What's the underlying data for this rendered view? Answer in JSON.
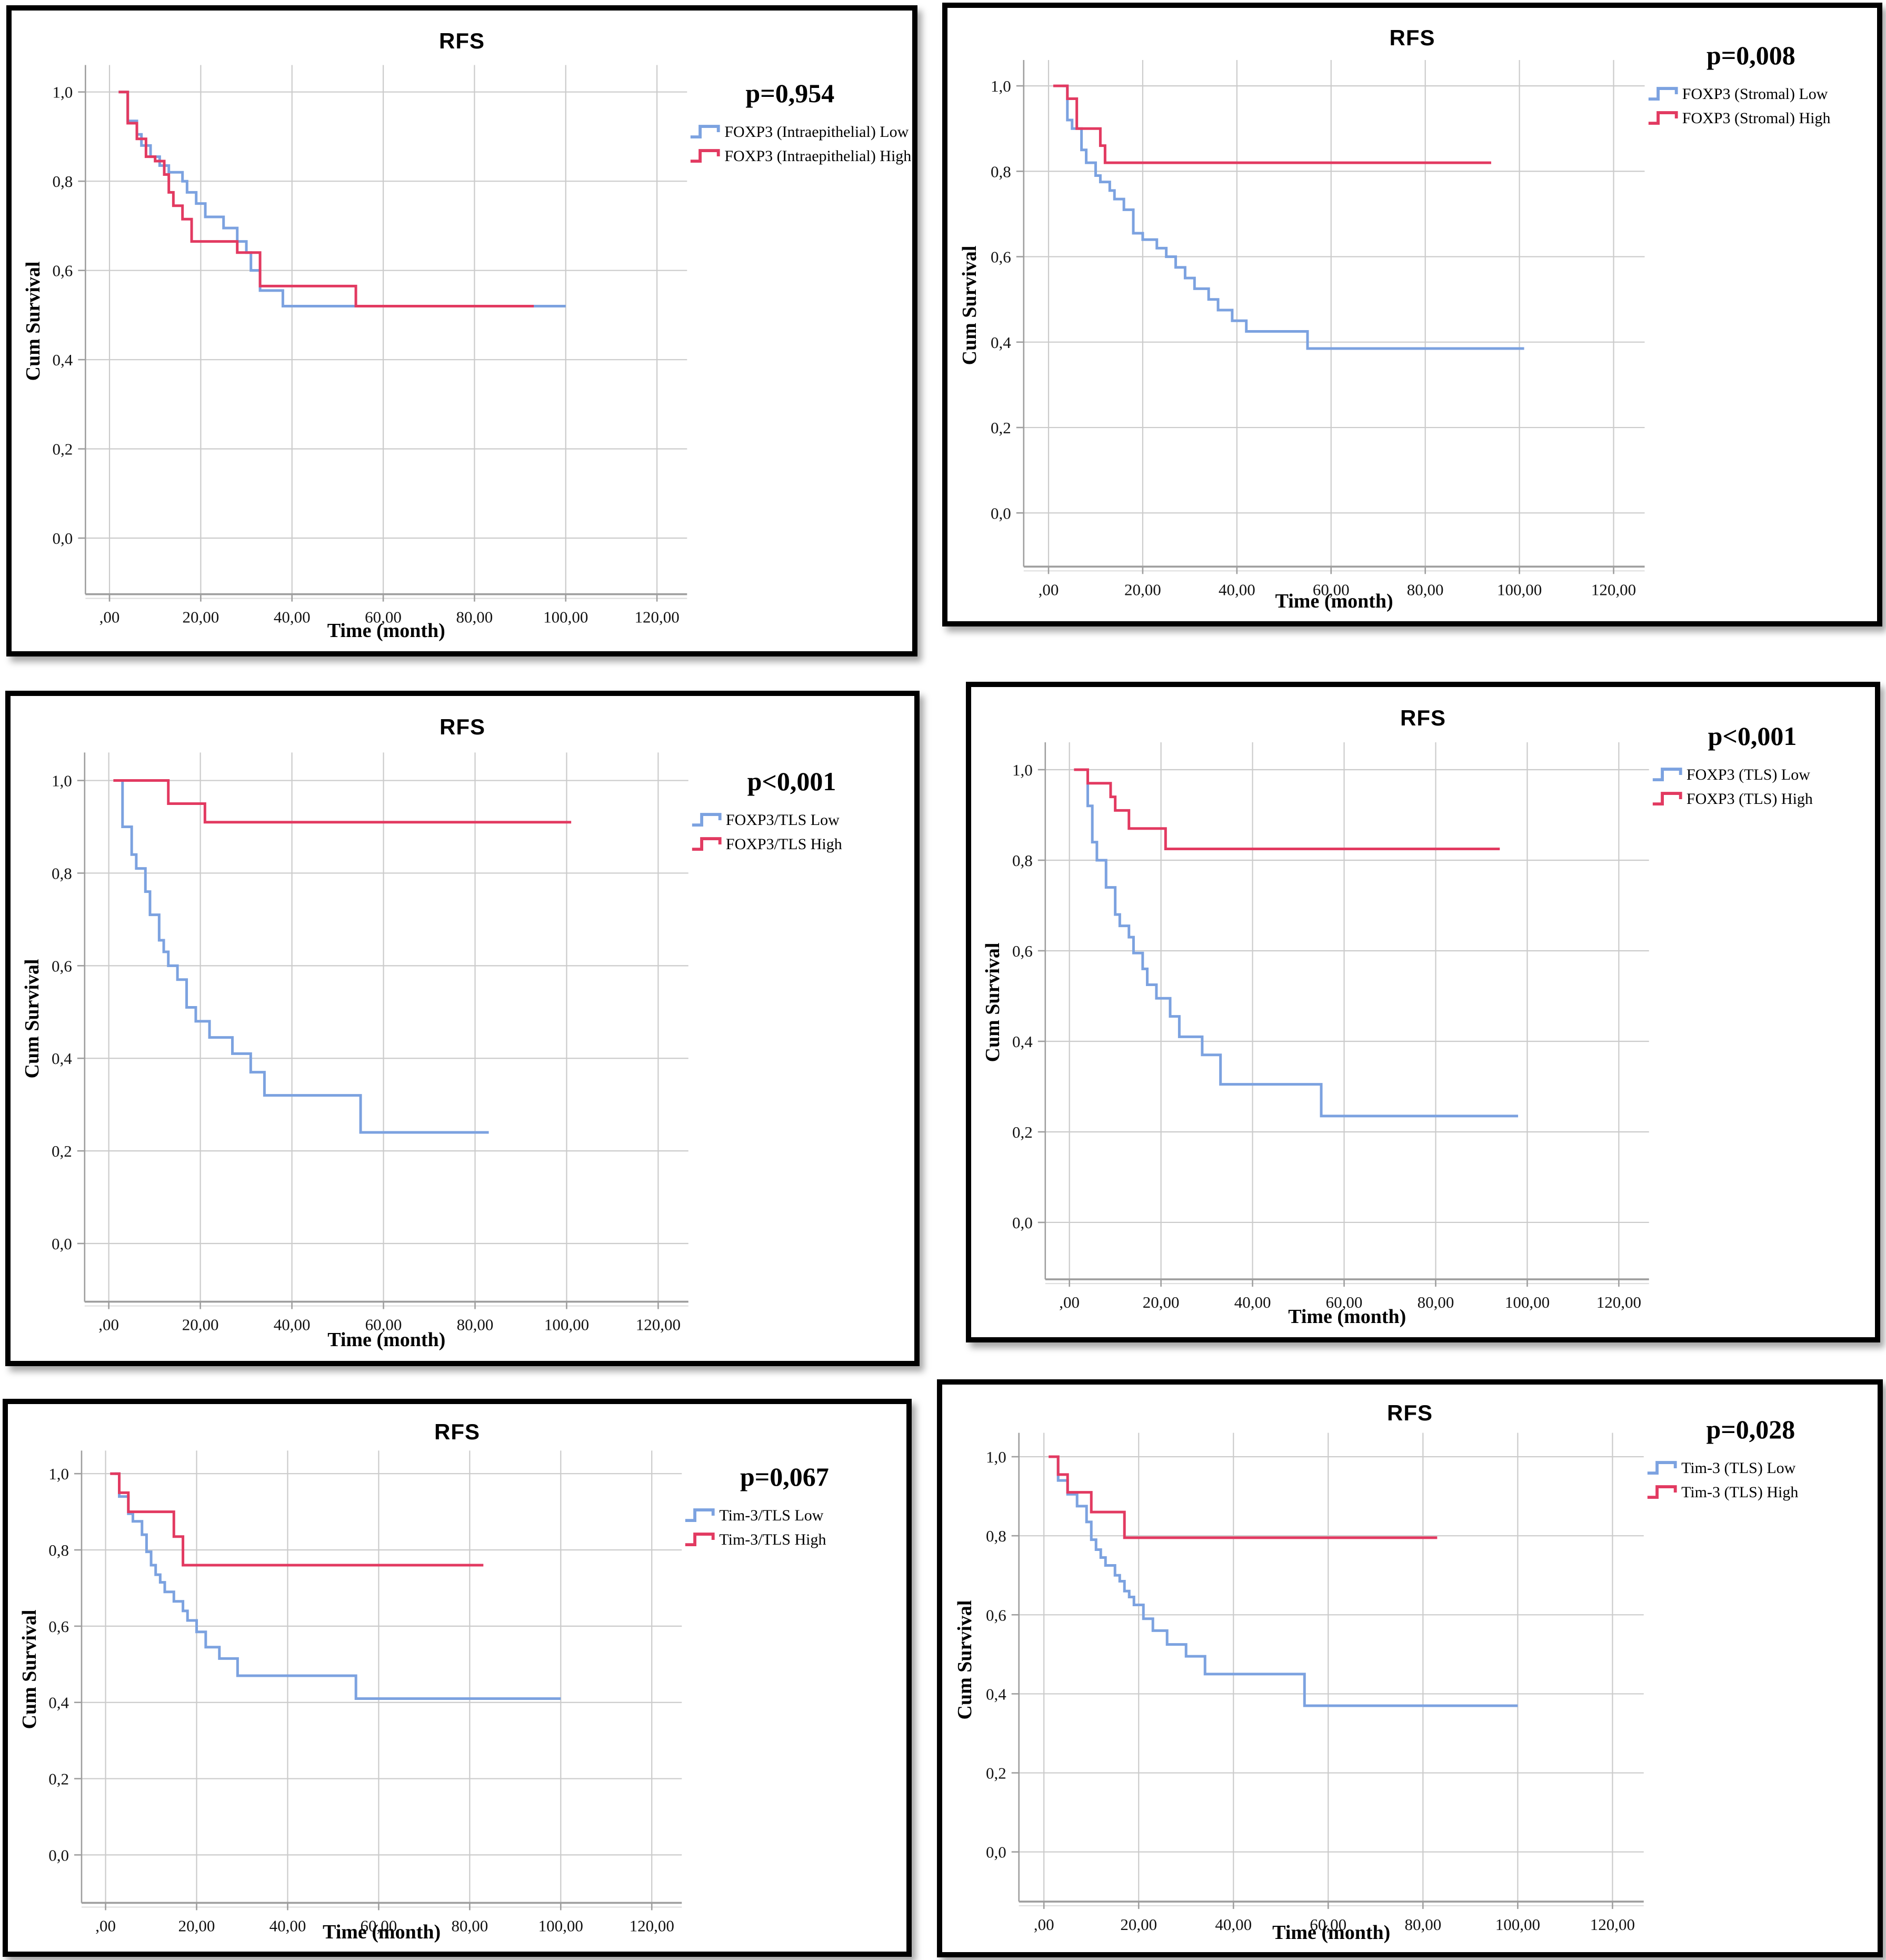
{
  "colors": {
    "low_line": "#7CA2E0",
    "high_line": "#E23A61",
    "grid": "#CBCBCB",
    "axis": "#9E9E9E",
    "panel_border": "#000000"
  },
  "chart_data": [
    {
      "type": "line",
      "subtype": "kaplan-meier-step",
      "title": "RFS",
      "p_value": "p=0,954",
      "xlabel": "Time (month)",
      "ylabel": "Cum Survival",
      "x_ticks": [
        ",00",
        "20,00",
        "40,00",
        "60,00",
        "80,00",
        "100,00",
        "120,00"
      ],
      "x_tick_values": [
        0,
        20,
        40,
        60,
        80,
        100,
        120
      ],
      "y_ticks": [
        "0,0",
        "0,2",
        "0,4",
        "0,6",
        "0,8",
        "1,0"
      ],
      "y_tick_values": [
        0,
        0.2,
        0.4,
        0.6,
        0.8,
        1.0
      ],
      "xlim": [
        -6,
        127
      ],
      "ylim": [
        -0.13,
        1.06
      ],
      "grid": true,
      "legend_position": "right",
      "series": [
        {
          "name": "FOXP3 (Intraepithelial) Low",
          "color": "#7CA2E0",
          "points": [
            [
              2,
              1.0
            ],
            [
              4,
              0.935
            ],
            [
              6,
              0.905
            ],
            [
              7,
              0.88
            ],
            [
              9,
              0.855
            ],
            [
              11,
              0.835
            ],
            [
              13,
              0.82
            ],
            [
              16,
              0.8
            ],
            [
              17,
              0.775
            ],
            [
              19,
              0.75
            ],
            [
              21,
              0.72
            ],
            [
              25,
              0.695
            ],
            [
              28,
              0.665
            ],
            [
              30,
              0.64
            ],
            [
              31,
              0.6
            ],
            [
              33,
              0.555
            ],
            [
              38,
              0.52
            ],
            [
              100,
              0.52
            ]
          ]
        },
        {
          "name": "FOXP3 (Intraepithelial) High",
          "color": "#E23A61",
          "points": [
            [
              2,
              1.0
            ],
            [
              4,
              0.93
            ],
            [
              6,
              0.895
            ],
            [
              8,
              0.855
            ],
            [
              10,
              0.845
            ],
            [
              12,
              0.815
            ],
            [
              13,
              0.775
            ],
            [
              14,
              0.745
            ],
            [
              16,
              0.715
            ],
            [
              18,
              0.665
            ],
            [
              28,
              0.64
            ],
            [
              33,
              0.565
            ],
            [
              54,
              0.52
            ],
            [
              93,
              0.52
            ]
          ]
        }
      ]
    },
    {
      "type": "line",
      "subtype": "kaplan-meier-step",
      "title": "RFS",
      "p_value": "p=0,008",
      "xlabel": "Time (month)",
      "ylabel": "Cum Survival",
      "x_ticks": [
        ",00",
        "20,00",
        "40,00",
        "60,00",
        "80,00",
        "100,00",
        "120,00"
      ],
      "x_tick_values": [
        0,
        20,
        40,
        60,
        80,
        100,
        120
      ],
      "y_ticks": [
        "0,0",
        "0,2",
        "0,4",
        "0,6",
        "0,8",
        "1,0"
      ],
      "y_tick_values": [
        0,
        0.2,
        0.4,
        0.6,
        0.8,
        1.0
      ],
      "xlim": [
        -6,
        127
      ],
      "ylim": [
        -0.13,
        1.06
      ],
      "grid": true,
      "legend_position": "right",
      "series": [
        {
          "name": "FOXP3 (Stromal) Low",
          "color": "#7CA2E0",
          "points": [
            [
              3,
              1.0
            ],
            [
              4,
              0.92
            ],
            [
              5,
              0.9
            ],
            [
              7,
              0.85
            ],
            [
              8,
              0.82
            ],
            [
              10,
              0.79
            ],
            [
              11,
              0.775
            ],
            [
              13,
              0.755
            ],
            [
              14,
              0.735
            ],
            [
              16,
              0.71
            ],
            [
              18,
              0.655
            ],
            [
              20,
              0.64
            ],
            [
              23,
              0.62
            ],
            [
              25,
              0.6
            ],
            [
              27,
              0.575
            ],
            [
              29,
              0.55
            ],
            [
              31,
              0.525
            ],
            [
              34,
              0.5
            ],
            [
              36,
              0.475
            ],
            [
              39,
              0.45
            ],
            [
              42,
              0.425
            ],
            [
              55,
              0.385
            ],
            [
              101,
              0.385
            ]
          ]
        },
        {
          "name": "FOXP3 (Stromal) High",
          "color": "#E23A61",
          "points": [
            [
              1,
              1.0
            ],
            [
              4,
              0.97
            ],
            [
              6,
              0.9
            ],
            [
              11,
              0.86
            ],
            [
              12,
              0.82
            ],
            [
              94,
              0.82
            ]
          ]
        }
      ]
    },
    {
      "type": "line",
      "subtype": "kaplan-meier-step",
      "title": "RFS",
      "p_value": "p<0,001",
      "xlabel": "Time (month)",
      "ylabel": "Cum Survival",
      "x_ticks": [
        ",00",
        "20,00",
        "40,00",
        "60,00",
        "80,00",
        "100,00",
        "120,00"
      ],
      "x_tick_values": [
        0,
        20,
        40,
        60,
        80,
        100,
        120
      ],
      "y_ticks": [
        "0,0",
        "0,2",
        "0,4",
        "0,6",
        "0,8",
        "1,0"
      ],
      "y_tick_values": [
        0,
        0.2,
        0.4,
        0.6,
        0.8,
        1.0
      ],
      "xlim": [
        -6,
        127
      ],
      "ylim": [
        -0.13,
        1.06
      ],
      "grid": true,
      "legend_position": "right",
      "series": [
        {
          "name": "FOXP3/TLS Low",
          "color": "#7CA2E0",
          "points": [
            [
              2,
              1.0
            ],
            [
              3,
              0.9
            ],
            [
              5,
              0.84
            ],
            [
              6,
              0.81
            ],
            [
              8,
              0.76
            ],
            [
              9,
              0.71
            ],
            [
              11,
              0.655
            ],
            [
              12,
              0.63
            ],
            [
              13,
              0.6
            ],
            [
              15,
              0.57
            ],
            [
              17,
              0.51
            ],
            [
              19,
              0.48
            ],
            [
              22,
              0.445
            ],
            [
              27,
              0.41
            ],
            [
              31,
              0.37
            ],
            [
              34,
              0.32
            ],
            [
              55,
              0.24
            ],
            [
              83,
              0.24
            ]
          ]
        },
        {
          "name": "FOXP3/TLS High",
          "color": "#E23A61",
          "points": [
            [
              1,
              1.0
            ],
            [
              13,
              0.95
            ],
            [
              21,
              0.91
            ],
            [
              101,
              0.91
            ]
          ]
        }
      ]
    },
    {
      "type": "line",
      "subtype": "kaplan-meier-step",
      "title": "RFS",
      "p_value": "p<0,001",
      "xlabel": "Time (month)",
      "ylabel": "Cum Survival",
      "x_ticks": [
        ",00",
        "20,00",
        "40,00",
        "60,00",
        "80,00",
        "100,00",
        "120,00"
      ],
      "x_tick_values": [
        0,
        20,
        40,
        60,
        80,
        100,
        120
      ],
      "y_ticks": [
        "0,0",
        "0,2",
        "0,4",
        "0,6",
        "0,8",
        "1,0"
      ],
      "y_tick_values": [
        0,
        0.2,
        0.4,
        0.6,
        0.8,
        1.0
      ],
      "xlim": [
        -6,
        127
      ],
      "ylim": [
        -0.13,
        1.06
      ],
      "grid": true,
      "legend_position": "right",
      "series": [
        {
          "name": "FOXP3 (TLS) Low",
          "color": "#7CA2E0",
          "points": [
            [
              2,
              1.0
            ],
            [
              4,
              0.92
            ],
            [
              5,
              0.84
            ],
            [
              6,
              0.8
            ],
            [
              8,
              0.74
            ],
            [
              10,
              0.68
            ],
            [
              11,
              0.655
            ],
            [
              13,
              0.63
            ],
            [
              14,
              0.595
            ],
            [
              16,
              0.56
            ],
            [
              17,
              0.525
            ],
            [
              19,
              0.495
            ],
            [
              22,
              0.455
            ],
            [
              24,
              0.41
            ],
            [
              29,
              0.37
            ],
            [
              33,
              0.305
            ],
            [
              55,
              0.235
            ],
            [
              98,
              0.235
            ]
          ]
        },
        {
          "name": "FOXP3 (TLS) High",
          "color": "#E23A61",
          "points": [
            [
              1,
              1.0
            ],
            [
              4,
              0.97
            ],
            [
              9,
              0.94
            ],
            [
              10,
              0.91
            ],
            [
              13,
              0.87
            ],
            [
              21,
              0.825
            ],
            [
              94,
              0.825
            ]
          ]
        }
      ]
    },
    {
      "type": "line",
      "subtype": "kaplan-meier-step",
      "title": "RFS",
      "p_value": "p=0,067",
      "xlabel": "Time (month)",
      "ylabel": "Cum Survival",
      "x_ticks": [
        ",00",
        "20,00",
        "40,00",
        "60,00",
        "80,00",
        "100,00",
        "120,00"
      ],
      "x_tick_values": [
        0,
        20,
        40,
        60,
        80,
        100,
        120
      ],
      "y_ticks": [
        "0,0",
        "0,2",
        "0,4",
        "0,6",
        "0,8",
        "1,0"
      ],
      "y_tick_values": [
        0,
        0.2,
        0.4,
        0.6,
        0.8,
        1.0
      ],
      "xlim": [
        -6,
        127
      ],
      "ylim": [
        -0.13,
        1.06
      ],
      "grid": true,
      "legend_position": "right",
      "series": [
        {
          "name": "Tim-3/TLS Low",
          "color": "#7CA2E0",
          "points": [
            [
              2,
              1.0
            ],
            [
              3,
              0.94
            ],
            [
              5,
              0.895
            ],
            [
              6,
              0.875
            ],
            [
              8,
              0.84
            ],
            [
              9,
              0.795
            ],
            [
              10,
              0.76
            ],
            [
              11,
              0.735
            ],
            [
              12,
              0.715
            ],
            [
              13,
              0.69
            ],
            [
              15,
              0.665
            ],
            [
              17,
              0.64
            ],
            [
              18,
              0.615
            ],
            [
              20,
              0.585
            ],
            [
              22,
              0.545
            ],
            [
              25,
              0.515
            ],
            [
              29,
              0.47
            ],
            [
              55,
              0.41
            ],
            [
              100,
              0.41
            ]
          ]
        },
        {
          "name": "Tim-3/TLS High",
          "color": "#E23A61",
          "points": [
            [
              1,
              1.0
            ],
            [
              3,
              0.95
            ],
            [
              5,
              0.9
            ],
            [
              15,
              0.835
            ],
            [
              17,
              0.76
            ],
            [
              83,
              0.76
            ]
          ]
        }
      ]
    },
    {
      "type": "line",
      "subtype": "kaplan-meier-step",
      "title": "RFS",
      "p_value": "p=0,028",
      "xlabel": "Time (month)",
      "ylabel": "Cum Survival",
      "x_ticks": [
        ",00",
        "20,00",
        "40,00",
        "60,00",
        "80,00",
        "100,00",
        "120,00"
      ],
      "x_tick_values": [
        0,
        20,
        40,
        60,
        80,
        100,
        120
      ],
      "y_ticks": [
        "0,0",
        "0,2",
        "0,4",
        "0,6",
        "0,8",
        "1,0"
      ],
      "y_tick_values": [
        0,
        0.2,
        0.4,
        0.6,
        0.8,
        1.0
      ],
      "xlim": [
        -6,
        127
      ],
      "ylim": [
        -0.13,
        1.06
      ],
      "grid": true,
      "legend_position": "right",
      "series": [
        {
          "name": "Tim-3 (TLS) Low",
          "color": "#7CA2E0",
          "points": [
            [
              2,
              1.0
            ],
            [
              3,
              0.94
            ],
            [
              5,
              0.905
            ],
            [
              7,
              0.875
            ],
            [
              9,
              0.835
            ],
            [
              10,
              0.79
            ],
            [
              11,
              0.765
            ],
            [
              12,
              0.745
            ],
            [
              13,
              0.725
            ],
            [
              15,
              0.7
            ],
            [
              16,
              0.685
            ],
            [
              17,
              0.66
            ],
            [
              18,
              0.645
            ],
            [
              19,
              0.625
            ],
            [
              21,
              0.59
            ],
            [
              23,
              0.56
            ],
            [
              26,
              0.525
            ],
            [
              30,
              0.495
            ],
            [
              34,
              0.45
            ],
            [
              55,
              0.37
            ],
            [
              100,
              0.37
            ]
          ]
        },
        {
          "name": "Tim-3 (TLS) High",
          "color": "#E23A61",
          "points": [
            [
              1,
              1.0
            ],
            [
              3,
              0.955
            ],
            [
              5,
              0.91
            ],
            [
              10,
              0.86
            ],
            [
              17,
              0.795
            ],
            [
              83,
              0.795
            ]
          ]
        }
      ]
    }
  ]
}
